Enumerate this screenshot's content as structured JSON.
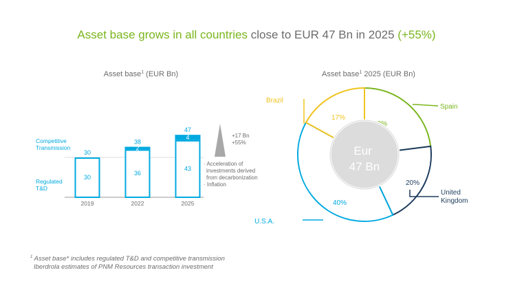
{
  "headline": {
    "part1": "Asset base grows in all countries",
    "part2": " close to EUR 47 Bn in 2025 ",
    "part3": "(+55%)"
  },
  "colors": {
    "green": "#7ab51d",
    "gray_text": "#6b6b6b",
    "blue": "#00a9e0",
    "navy": "#1b3a5c",
    "yellow": "#f0c31d",
    "donut_center": "#dcdcdc"
  },
  "chart_data": [
    {
      "type": "bar",
      "title": "Asset base",
      "title_superscript": "1",
      "title_unit": " (EUR Bn)",
      "categories": [
        "2019",
        "2022",
        "2025"
      ],
      "series": [
        {
          "name": "Regulated T&D",
          "values": [
            30,
            36,
            43
          ]
        },
        {
          "name": "Competitive Transmission",
          "values": [
            0,
            2,
            4
          ]
        }
      ],
      "totals": [
        30,
        38,
        47
      ],
      "legend_lines": {
        "competitive": [
          "Competitive",
          "Transmission"
        ],
        "regulated": [
          "Regulated",
          "T&D"
        ]
      },
      "growth_annotation": {
        "line1": "+17 Bn",
        "line2": "+55%"
      },
      "drivers": [
        "Acceleration of",
        "investments derived",
        "from decarbonization",
        "Inflation"
      ],
      "ylim": [
        0,
        50
      ]
    },
    {
      "type": "pie",
      "title": "Asset base",
      "title_superscript": "1",
      "title_unit": " 2025 (EUR Bn)",
      "center_label": [
        "Eur",
        "47 Bn"
      ],
      "slices": [
        {
          "name": "Spain",
          "value": 23,
          "label": "23%",
          "color": "#7ab51d"
        },
        {
          "name": "United Kingdom",
          "value": 20,
          "label": "20%",
          "color": "#1b3a5c",
          "name_lines": [
            "United",
            "Kingdom"
          ]
        },
        {
          "name": "U.S.A.",
          "value": 40,
          "label": "40%",
          "color": "#00a9e0"
        },
        {
          "name": "Brazil",
          "value": 17,
          "label": "17%",
          "color": "#f0c31d"
        }
      ]
    }
  ],
  "footnotes": {
    "marker": "1",
    "line1": "Asset base* includes regulated T&D and competitive transmission",
    "line2": "Iberdrola estimates of PNM Resources transaction investment"
  }
}
